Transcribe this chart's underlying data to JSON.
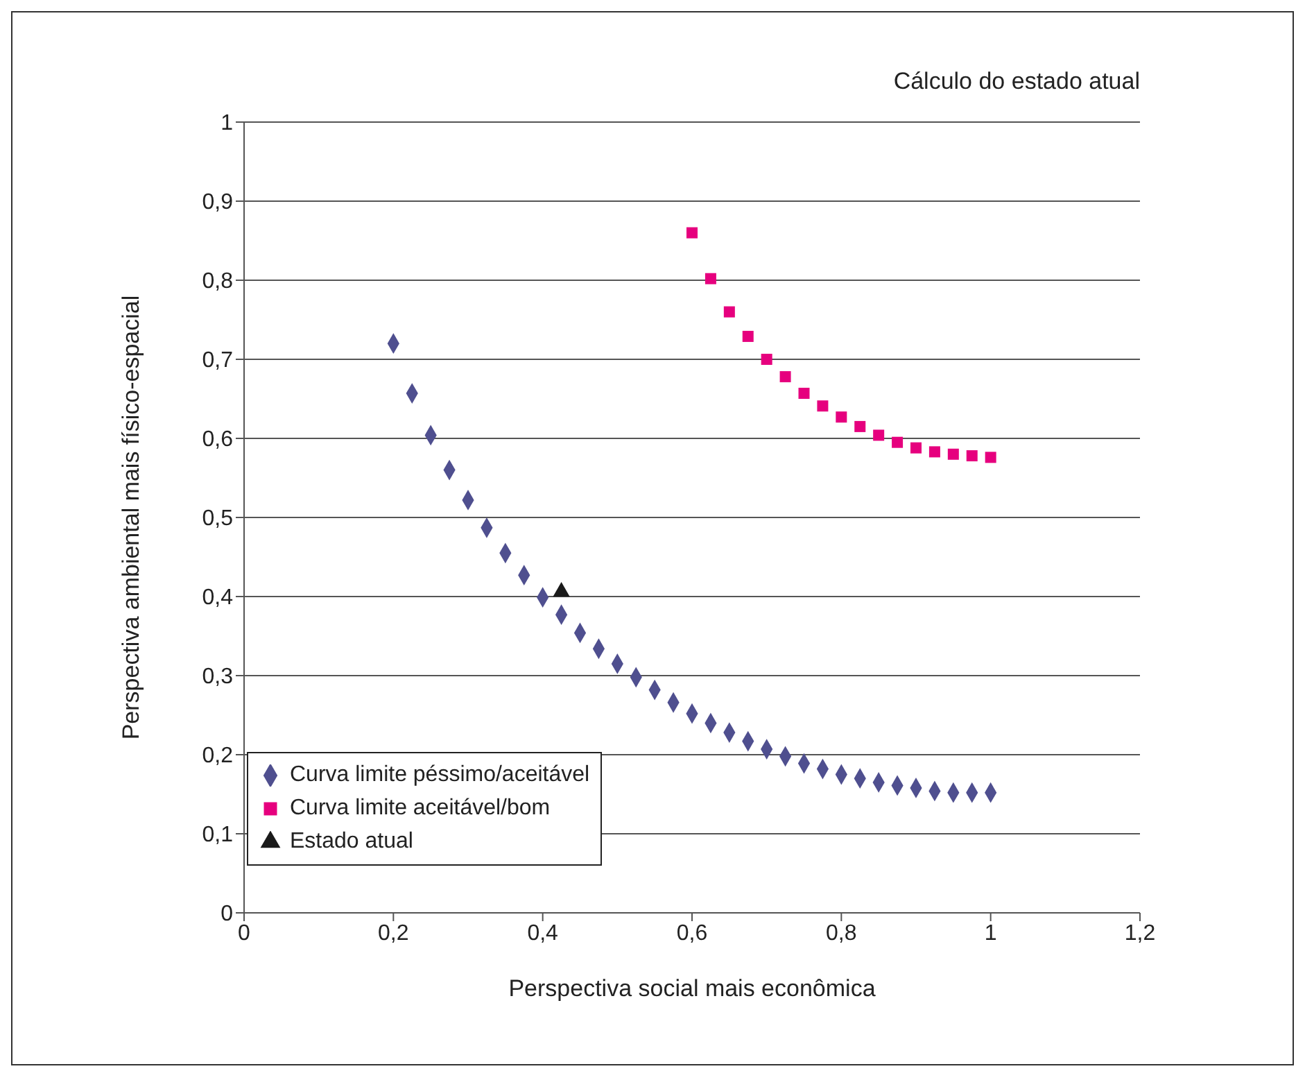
{
  "chart_data": {
    "type": "scatter",
    "title": "Cálculo do estado atual",
    "xlabel": "Perspectiva social mais econômica",
    "ylabel": "Perspectiva ambiental mais físico-espacial",
    "xlim": [
      0,
      1.2
    ],
    "xticks": [
      0,
      {
        "value": 0.2,
        "label": "0,2"
      },
      {
        "value": 0.4,
        "label": "0,4"
      },
      {
        "value": 0.6,
        "label": "0,6"
      },
      {
        "value": 0.8,
        "label": "0,8"
      },
      1,
      {
        "value": 1.2,
        "label": "1,2"
      }
    ],
    "ylim": [
      0,
      1
    ],
    "yticks": [
      0,
      {
        "value": 0.1,
        "label": "0,1"
      },
      {
        "value": 0.2,
        "label": "0,2"
      },
      {
        "value": 0.3,
        "label": "0,3"
      },
      {
        "value": 0.4,
        "label": "0,4"
      },
      {
        "value": 0.5,
        "label": "0,5"
      },
      {
        "value": 0.6,
        "label": "0,6"
      },
      {
        "value": 0.7,
        "label": "0,7"
      },
      {
        "value": 0.8,
        "label": "0,8"
      },
      {
        "value": 0.9,
        "label": "0,9"
      },
      1
    ],
    "grid": "y",
    "legend": "bottom left",
    "series": [
      {
        "name": "Curva limite péssimo/aceitável",
        "color": "#4f4f8f",
        "marker": "diamond",
        "x": [
          0.2,
          0.225,
          0.25,
          0.275,
          0.3,
          0.325,
          0.35,
          0.375,
          0.4,
          0.425,
          0.45,
          0.475,
          0.5,
          0.525,
          0.55,
          0.575,
          0.6,
          0.625,
          0.65,
          0.675,
          0.7,
          0.725,
          0.75,
          0.775,
          0.8,
          0.825,
          0.85,
          0.875,
          0.9,
          0.925,
          0.95,
          0.975,
          1.0
        ],
        "values": [
          0.72,
          0.657,
          0.604,
          0.56,
          0.522,
          0.487,
          0.455,
          0.427,
          0.399,
          0.377,
          0.354,
          0.334,
          0.315,
          0.298,
          0.282,
          0.266,
          0.252,
          0.24,
          0.228,
          0.217,
          0.207,
          0.198,
          0.189,
          0.182,
          0.175,
          0.17,
          0.165,
          0.161,
          0.158,
          0.154,
          0.152,
          0.152,
          0.152
        ]
      },
      {
        "name": "Curva limite aceitável/bom",
        "color": "#e6007e",
        "marker": "square",
        "x": [
          0.6,
          0.625,
          0.65,
          0.675,
          0.7,
          0.725,
          0.75,
          0.775,
          0.8,
          0.825,
          0.85,
          0.875,
          0.9,
          0.925,
          0.95,
          0.975,
          1.0
        ],
        "values": [
          0.86,
          0.802,
          0.76,
          0.729,
          0.7,
          0.678,
          0.657,
          0.641,
          0.627,
          0.615,
          0.604,
          0.595,
          0.588,
          0.583,
          0.58,
          0.578,
          0.576
        ]
      },
      {
        "name": "Estado atual",
        "color": "#1a1a1a",
        "marker": "triangle",
        "x": [
          0.425
        ],
        "values": [
          0.406
        ]
      }
    ]
  }
}
